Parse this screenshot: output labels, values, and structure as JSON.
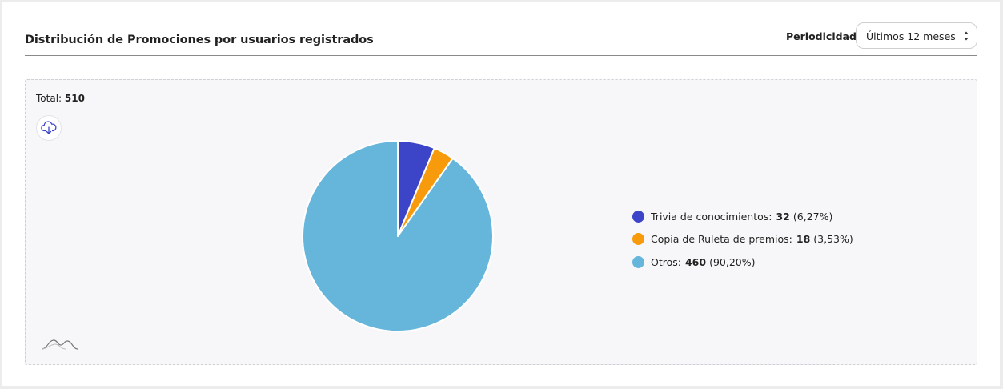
{
  "header": {
    "title": "Distribución de Promociones por usuarios registrados",
    "period_label": "Periodicidad:",
    "period_value": "Últimos 12 meses"
  },
  "panel": {
    "total_label": "Total:",
    "total_value": "510"
  },
  "icons": {
    "download": "cloud-download-icon",
    "chart_type": "wave-chart-icon",
    "select_arrows": "sort-arrows-icon"
  },
  "chart_data": {
    "type": "pie",
    "total": 510,
    "slices": [
      {
        "label": "Trivia de conocimientos",
        "value": 32,
        "value_text": "32",
        "percent_text": "(6,27%)",
        "color": "#3c45c8"
      },
      {
        "label": "Copia de Ruleta de premios",
        "value": 18,
        "value_text": "18",
        "percent_text": "(3,53%)",
        "color": "#f79a0c"
      },
      {
        "label": "Otros",
        "value": 460,
        "value_text": "460",
        "percent_text": "(90,20%)",
        "color": "#66b6dc"
      }
    ],
    "legend_position": "right"
  }
}
